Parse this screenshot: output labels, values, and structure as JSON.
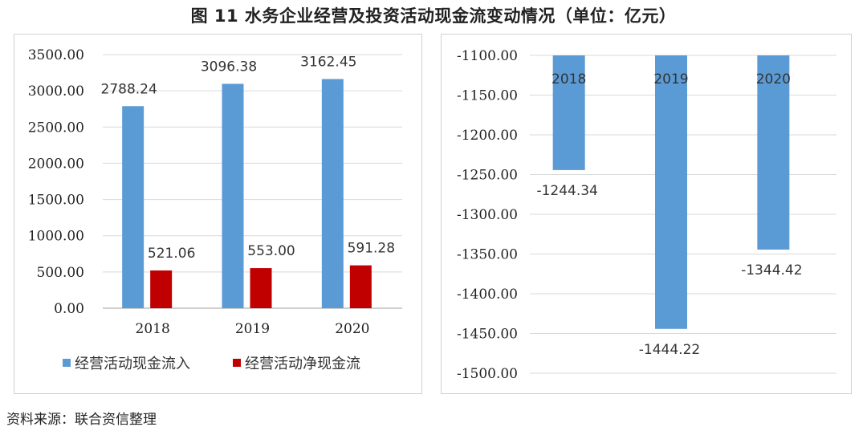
{
  "title": "图 11    水务企业经营及投资活动现金流变动情况（单位：亿元）",
  "source": "资料来源：联合资信整理",
  "colors": {
    "inflow": "#5b9bd5",
    "net": "#c00000",
    "grid": "#d9d9d9",
    "axis": "#bfbfbf"
  },
  "chart_data": [
    {
      "type": "bar",
      "categories": [
        "2018",
        "2019",
        "2020"
      ],
      "series": [
        {
          "name": "经营活动现金流入",
          "values": [
            2788.24,
            3096.38,
            3162.45
          ],
          "color": "#5b9bd5"
        },
        {
          "name": "经营活动净现金流",
          "values": [
            521.06,
            553.0,
            591.28
          ],
          "color": "#c00000"
        }
      ],
      "data_labels": [
        [
          "2788.24",
          "3096.38",
          "3162.45"
        ],
        [
          "521.06",
          "553.00",
          "591.28"
        ]
      ],
      "yticks": [
        "0.00",
        "500.00",
        "1000.00",
        "1500.00",
        "2000.00",
        "2500.00",
        "3000.00",
        "3500.00"
      ],
      "ylim": [
        0,
        3500
      ],
      "grid": true,
      "legend": "bottom"
    },
    {
      "type": "bar",
      "categories": [
        "2018",
        "2019",
        "2020"
      ],
      "series": [
        {
          "values": [
            -1244.34,
            -1444.22,
            -1344.42
          ],
          "color": "#5b9bd5"
        }
      ],
      "data_labels": [
        "-1244.34",
        "-1444.22",
        "-1344.42"
      ],
      "yticks": [
        "-1100.00",
        "-1150.00",
        "-1200.00",
        "-1250.00",
        "-1300.00",
        "-1350.00",
        "-1400.00",
        "-1450.00",
        "-1500.00"
      ],
      "ylim": [
        -1500,
        -1100
      ],
      "grid": true,
      "legend": "none"
    }
  ]
}
